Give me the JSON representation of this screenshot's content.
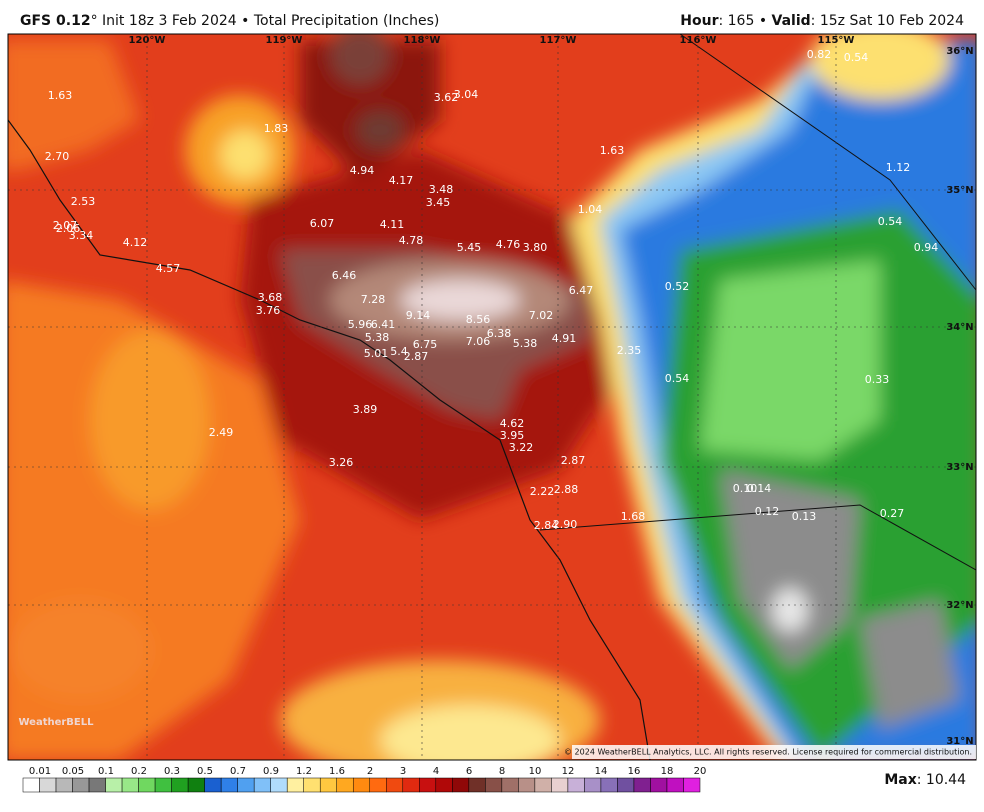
{
  "header": {
    "left_bold": "GFS 0.12",
    "left_rest": "° Init 18z 3 Feb 2024 • Total Precipitation (Inches)",
    "hour_key": "Hour",
    "hour_val": ": 165 • ",
    "valid_key": "Valid",
    "valid_val": ": 15z Sat 10 Feb 2024"
  },
  "axes": {
    "lon": [
      "120°W",
      "119°W",
      "118°W",
      "117°W",
      "116°W",
      "115°W"
    ],
    "lat": [
      "36°N",
      "35°N",
      "34°N",
      "33°N",
      "32°N",
      "31°N"
    ]
  },
  "map": {
    "labels": [
      "1.63",
      "2.70",
      "1.83",
      "2.53",
      "2.07",
      "2.06",
      "3.34",
      "4.12",
      "4.57",
      "3.62",
      "3.04",
      "4.94",
      "4.17",
      "3.48",
      "3.45",
      "1.63",
      "1.04",
      "6.07",
      "4.11",
      "4.78",
      "5.45",
      "4.76",
      "3.80",
      "6.46",
      "7.28",
      "3.68",
      "3.76",
      "9.14",
      "8.56",
      "7.02",
      "6.47",
      "5.96",
      "6.41",
      "5.38",
      "6.38",
      "7.06",
      "5.38",
      "4.91",
      "6.75",
      "5.01",
      "5.4",
      "2.87",
      "2.35",
      "0.52",
      "0.54",
      "3.89",
      "2.49",
      "4.62",
      "3.95",
      "3.22",
      "2.87",
      "3.26",
      "2.22",
      "2.88",
      "2.84",
      "2.90",
      "1.68",
      "0.10",
      "0.14",
      "0.12",
      "0.13",
      "0.27",
      "0.33",
      "0.82",
      "0.54",
      "1.12",
      "0.54",
      "0.94"
    ]
  },
  "credit": "© 2024 WeatherBELL Analytics, LLC. All rights reserved. License required for commercial distribution.",
  "logo": "WeatherBELL",
  "legend": {
    "labels": [
      "0.01",
      "0.05",
      "0.1",
      "0.2",
      "0.3",
      "0.5",
      "0.7",
      "0.9",
      "1.2",
      "1.6",
      "2",
      "3",
      "4",
      "6",
      "8",
      "10",
      "12",
      "14",
      "16",
      "18",
      "20"
    ],
    "colors": [
      "#ffffff",
      "#d8d8d8",
      "#b8b8b8",
      "#989898",
      "#787878",
      "#b8f0a8",
      "#98e888",
      "#70d860",
      "#40c040",
      "#20a020",
      "#108010",
      "#1a60d0",
      "#2f80e8",
      "#50a0f0",
      "#80c0f8",
      "#b0dcfc",
      "#fff0a0",
      "#ffe070",
      "#ffc840",
      "#ffa820",
      "#ff8a10",
      "#ff6a10",
      "#f04a10",
      "#e02a10",
      "#c81010",
      "#b00808",
      "#900808",
      "#703028",
      "#885048",
      "#a07068",
      "#b89088",
      "#d0b0a8",
      "#e8d0d0",
      "#c8b0d8",
      "#a890c8",
      "#8870b8",
      "#7050a0",
      "#802090",
      "#a010a0",
      "#c010c0",
      "#e020e0"
    ]
  },
  "max_key": "Max",
  "max_val": ": 10.44"
}
